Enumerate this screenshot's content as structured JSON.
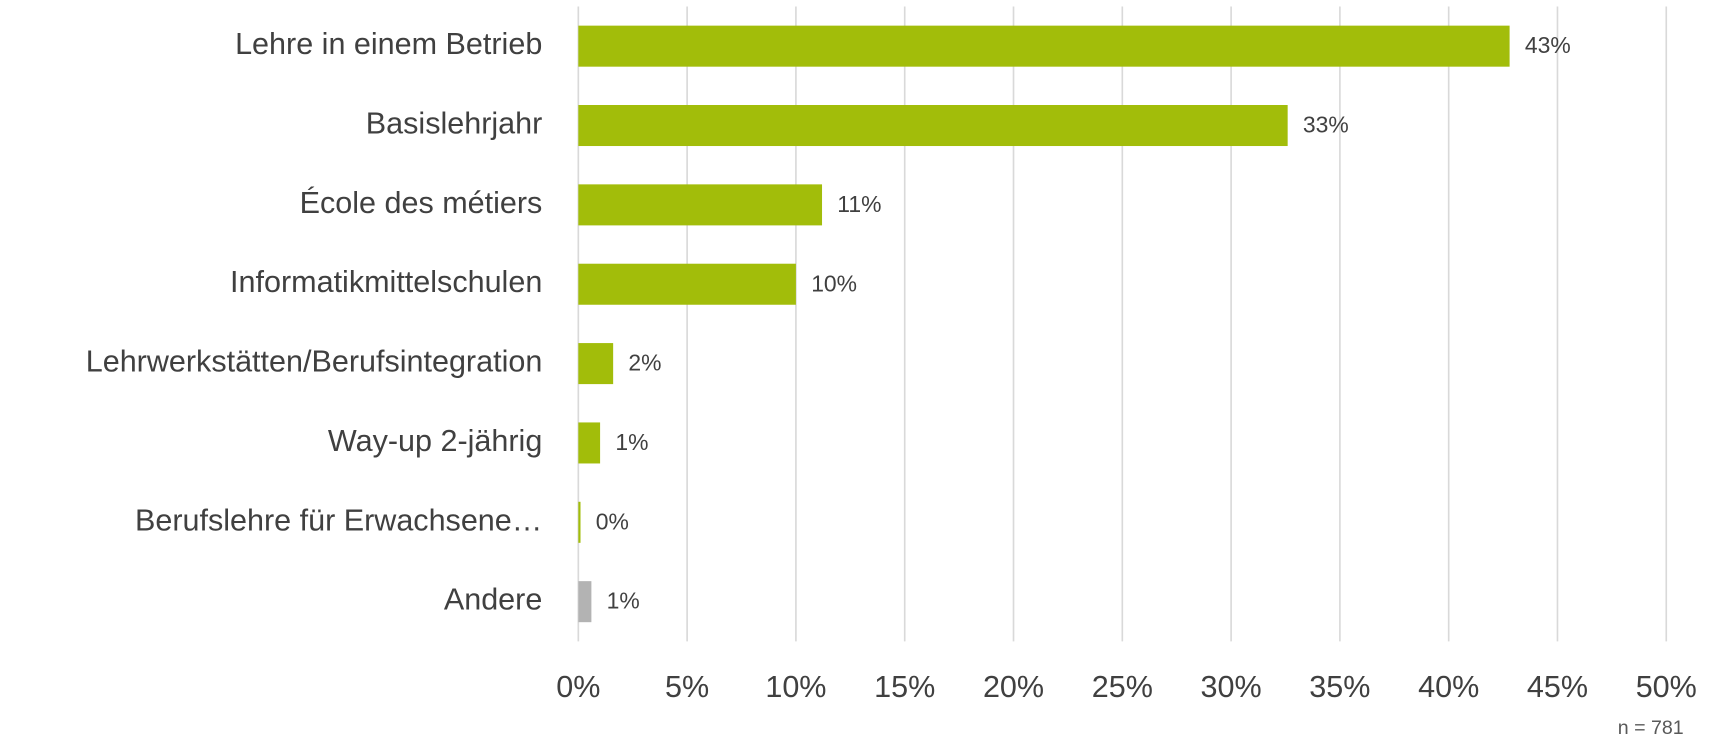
{
  "chart_data": {
    "type": "bar",
    "orientation": "horizontal",
    "categories": [
      "Lehre in einem Betrieb",
      "Basislehrjahr",
      "École des métiers",
      "Informatikmittelschulen",
      "Lehrwerkstätten/Berufsintegration",
      "Way-up 2-jährig",
      "Berufslehre für Erwachsene…",
      "Andere"
    ],
    "values": [
      42.8,
      32.6,
      11.2,
      10.0,
      1.6,
      1.0,
      0.1,
      0.6
    ],
    "value_labels": [
      "43%",
      "33%",
      "11%",
      "10%",
      "2%",
      "1%",
      "0%",
      "1%"
    ],
    "colors": [
      "#a2bd0a",
      "#a2bd0a",
      "#a2bd0a",
      "#a2bd0a",
      "#a2bd0a",
      "#a2bd0a",
      "#a2bd0a",
      "#b3b3b3"
    ],
    "xlim": [
      0,
      50
    ],
    "xticks": [
      {
        "value": 0,
        "label": "0%"
      },
      {
        "value": 5,
        "label": "5%"
      },
      {
        "value": 10,
        "label": "10%"
      },
      {
        "value": 15,
        "label": "15%"
      },
      {
        "value": 20,
        "label": "20%"
      },
      {
        "value": 25,
        "label": "25%"
      },
      {
        "value": 30,
        "label": "30%"
      },
      {
        "value": 35,
        "label": "35%"
      },
      {
        "value": 40,
        "label": "40%"
      },
      {
        "value": 45,
        "label": "45%"
      },
      {
        "value": 50,
        "label": "50%"
      }
    ],
    "grid": true,
    "annotation": "n = 781"
  }
}
